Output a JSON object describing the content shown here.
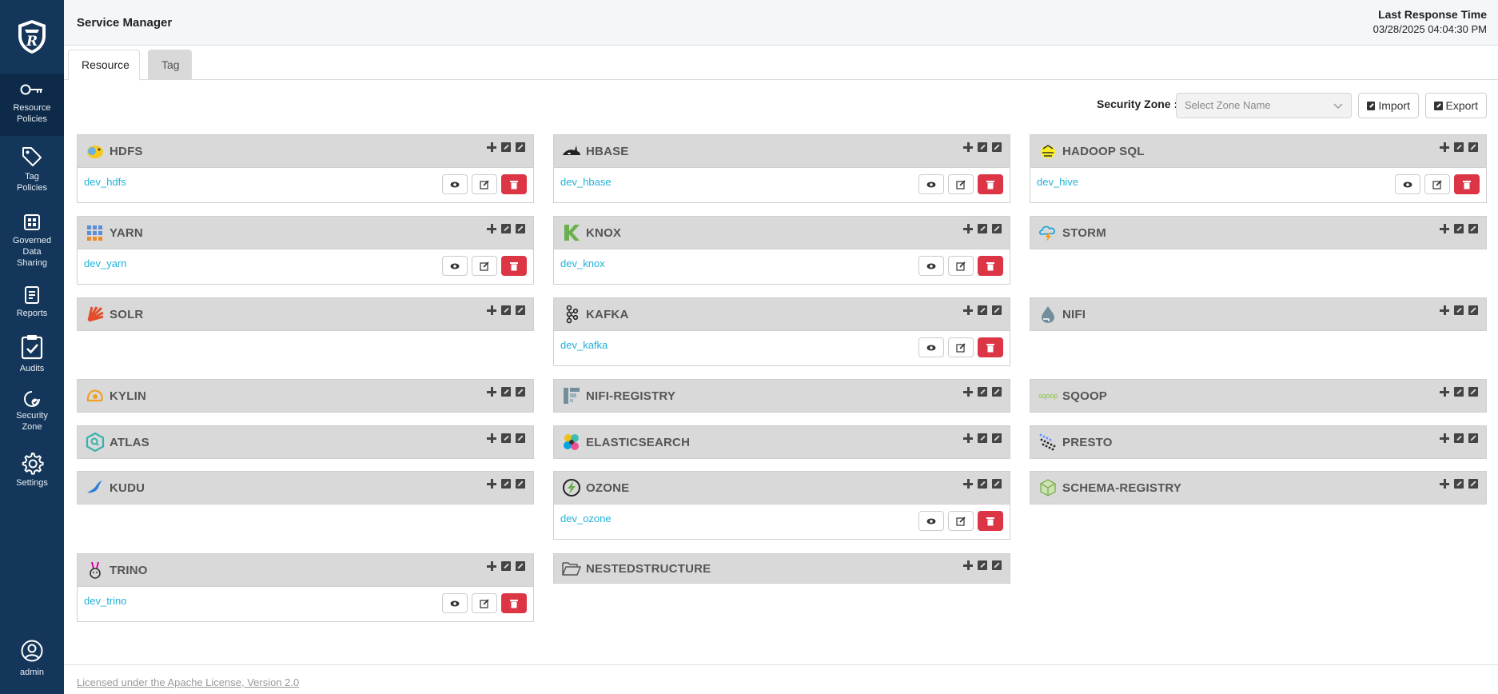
{
  "sidebar": {
    "items": [
      {
        "label_1": "Resource",
        "label_2": "Policies",
        "icon": "key-icon"
      },
      {
        "label_1": "Tag",
        "label_2": "Policies",
        "icon": "tag-icon"
      },
      {
        "label_1": "Governed",
        "label_2": "Data",
        "label_3": "Sharing",
        "icon": "grid-icon"
      },
      {
        "label_1": "Reports",
        "icon": "report-icon"
      },
      {
        "label_1": "Audits",
        "icon": "clipboard-check-icon"
      },
      {
        "label_1": "Security",
        "label_2": "Zone",
        "icon": "zone-icon"
      },
      {
        "label_1": "Settings",
        "icon": "gear-icon"
      }
    ],
    "user_label": "admin"
  },
  "header": {
    "title": "Service Manager",
    "response_label": "Last Response Time",
    "response_time": "03/28/2025 04:04:30 PM"
  },
  "tabs": [
    "Resource",
    "Tag"
  ],
  "toolbar": {
    "zone_label": "Security Zone :",
    "zone_placeholder": "Select Zone Name",
    "import_label": "Import",
    "export_label": "Export"
  },
  "services": {
    "hdfs": {
      "name": "HDFS",
      "link": "dev_hdfs"
    },
    "hbase": {
      "name": "HBASE",
      "link": "dev_hbase"
    },
    "hadoopsql": {
      "name": "HADOOP SQL",
      "link": "dev_hive"
    },
    "yarn": {
      "name": "YARN",
      "link": "dev_yarn"
    },
    "knox": {
      "name": "KNOX",
      "link": "dev_knox"
    },
    "storm": {
      "name": "STORM"
    },
    "solr": {
      "name": "SOLR"
    },
    "kafka": {
      "name": "KAFKA",
      "link": "dev_kafka"
    },
    "nifi": {
      "name": "NIFI"
    },
    "kylin": {
      "name": "KYLIN"
    },
    "nifiregistry": {
      "name": "NIFI-REGISTRY"
    },
    "sqoop": {
      "name": "SQOOP",
      "logo_text": "sqoop"
    },
    "atlas": {
      "name": "ATLAS"
    },
    "elasticsearch": {
      "name": "ELASTICSEARCH"
    },
    "presto": {
      "name": "PRESTO"
    },
    "kudu": {
      "name": "KUDU"
    },
    "ozone": {
      "name": "OZONE",
      "link": "dev_ozone"
    },
    "schemaregistry": {
      "name": "SCHEMA-REGISTRY"
    },
    "trino": {
      "name": "TRINO",
      "link": "dev_trino"
    },
    "nestedstructure": {
      "name": "NESTEDSTRUCTURE"
    }
  },
  "footer": {
    "license": "Licensed under the Apache License, Version 2.0"
  },
  "colors": {
    "sidebar": "#14365a",
    "link": "#20b2d8",
    "danger": "#dc3545",
    "panel_header": "#d9d9d9"
  }
}
